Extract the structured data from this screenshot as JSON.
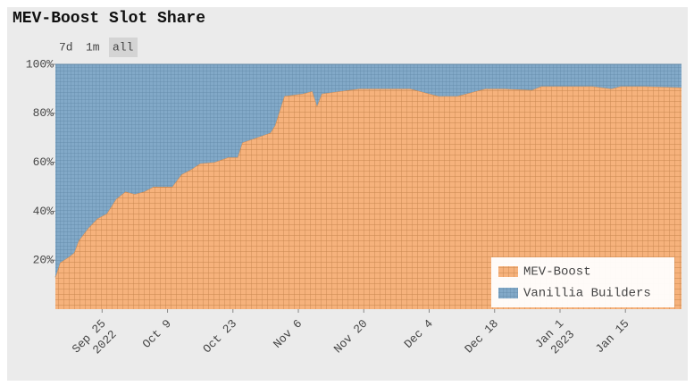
{
  "chart_data": {
    "type": "stacked_area",
    "title": "MEV-Boost Slot Share",
    "range_buttons": [
      "7d",
      "1m",
      "all"
    ],
    "selected_range": "all",
    "x": [
      "2022-09-15",
      "2022-09-16",
      "2022-09-18",
      "2022-09-19",
      "2022-09-20",
      "2022-09-22",
      "2022-09-24",
      "2022-09-26",
      "2022-09-28",
      "2022-09-30",
      "2022-10-02",
      "2022-10-04",
      "2022-10-06",
      "2022-10-10",
      "2022-10-12",
      "2022-10-14",
      "2022-10-16",
      "2022-10-19",
      "2022-10-22",
      "2022-10-24",
      "2022-10-25",
      "2022-10-28",
      "2022-10-31",
      "2022-11-01",
      "2022-11-03",
      "2022-11-07",
      "2022-11-09",
      "2022-11-10",
      "2022-11-11",
      "2022-11-15",
      "2022-11-19",
      "2022-11-25",
      "2022-11-30",
      "2022-12-06",
      "2022-12-10",
      "2022-12-16",
      "2022-12-20",
      "2022-12-26",
      "2022-12-28",
      "2023-01-02",
      "2023-01-08",
      "2023-01-12",
      "2023-01-14",
      "2023-01-19",
      "2023-01-27"
    ],
    "series": [
      {
        "name": "MEV-Boost",
        "color": "#f6b27c",
        "line_color": "#c98a55",
        "values": [
          13,
          19,
          21.5,
          23,
          28,
          33,
          37,
          39,
          45,
          48,
          47,
          48,
          50,
          50,
          55,
          57,
          59.5,
          60,
          62,
          62,
          68,
          70,
          72,
          75,
          87,
          88,
          89,
          83,
          88,
          89,
          90,
          90,
          90,
          87,
          87,
          90,
          90,
          89.5,
          91,
          91,
          91,
          90,
          91,
          91,
          90.5
        ]
      },
      {
        "name": "Vanillia Builders",
        "color": "#82a9c8",
        "line_color": "#5c84a3",
        "values": [
          87,
          81,
          78.5,
          77,
          72,
          67,
          63,
          61,
          55,
          52,
          53,
          52,
          50,
          50,
          45,
          43,
          40.5,
          40,
          38,
          38,
          32,
          30,
          28,
          25,
          13,
          12,
          11,
          17,
          12,
          11,
          10,
          10,
          10,
          13,
          13,
          10,
          10,
          10.5,
          9,
          9,
          9,
          10,
          9,
          9,
          9.5
        ]
      }
    ],
    "xlim": [
      "2022-09-15",
      "2023-01-27"
    ],
    "xticks": [
      {
        "value": "2022-09-25",
        "label": "Sep 25",
        "year": "2022"
      },
      {
        "value": "2022-10-09",
        "label": "Oct 9"
      },
      {
        "value": "2022-10-23",
        "label": "Oct 23"
      },
      {
        "value": "2022-11-06",
        "label": "Nov 6"
      },
      {
        "value": "2022-11-20",
        "label": "Nov 20"
      },
      {
        "value": "2022-12-04",
        "label": "Dec 4"
      },
      {
        "value": "2022-12-18",
        "label": "Dec 18"
      },
      {
        "value": "2023-01-01",
        "label": "Jan 1",
        "year": "2023"
      },
      {
        "value": "2023-01-15",
        "label": "Jan 15"
      }
    ],
    "ylim": [
      0,
      100
    ],
    "yticks": [
      {
        "value": 20,
        "label": "20%"
      },
      {
        "value": 40,
        "label": "40%"
      },
      {
        "value": 60,
        "label": "60%"
      },
      {
        "value": 80,
        "label": "80%"
      },
      {
        "value": 100,
        "label": "100%"
      }
    ],
    "legend": "lower right"
  }
}
